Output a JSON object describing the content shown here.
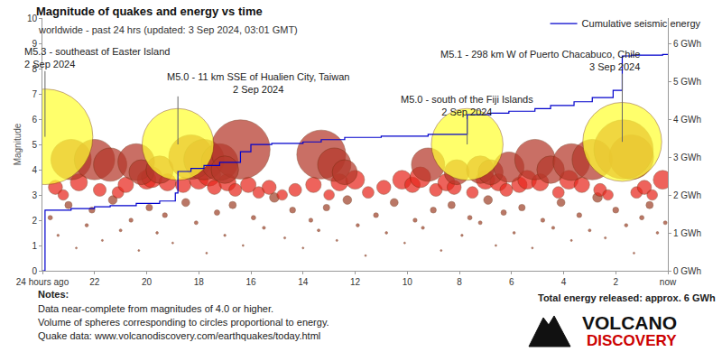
{
  "chart_data": {
    "type": "scatter",
    "title": "Magnitude of quakes and energy vs time",
    "subtitle": "worldwide - past 24 hrs (updated: 3 Sep 2024, 03:01 GMT)",
    "ylabel": "Magnitude",
    "xlim": [
      24,
      0
    ],
    "xticks": [
      {
        "value": 24,
        "label": "24 hours ago"
      },
      22,
      20,
      18,
      16,
      14,
      12,
      10,
      8,
      6,
      4,
      2,
      {
        "value": 0,
        "label": "now"
      }
    ],
    "ylim": [
      0,
      10
    ],
    "yticks": [
      0,
      1,
      2,
      3,
      4,
      5,
      6,
      7,
      8,
      9,
      10
    ],
    "y2lim": [
      0,
      6.67
    ],
    "y2ticks": [
      {
        "value": 0,
        "label": "0 GWh"
      },
      {
        "value": 1,
        "label": "1 GWh"
      },
      {
        "value": 2,
        "label": "2 GWh"
      },
      {
        "value": 3,
        "label": "3 GWh"
      },
      {
        "value": 4,
        "label": "4 GWh"
      },
      {
        "value": 5,
        "label": "5 GWh"
      },
      {
        "value": 6,
        "label": "6 GWh"
      }
    ],
    "grid": false,
    "legend": "top right",
    "series": [
      {
        "color": "#a0442c",
        "marker": "circle",
        "x": [
          23.7,
          23.4,
          23.0,
          22.7,
          22.3,
          22.1,
          21.7,
          21.3,
          21.0,
          20.6,
          20.3,
          19.9,
          19.6,
          19.3,
          19.0,
          18.5,
          18.1,
          17.7,
          17.3,
          17.0,
          16.7,
          16.3,
          15.9,
          15.5,
          15.1,
          14.7,
          14.4,
          14.0,
          13.7,
          13.4,
          13.1,
          12.7,
          12.3,
          11.9,
          11.6,
          11.2,
          10.8,
          10.5,
          10.1,
          9.7,
          9.4,
          9.0,
          8.7,
          8.3,
          7.9,
          7.6,
          7.2,
          6.9,
          6.6,
          6.3,
          5.9,
          5.6,
          5.2,
          4.8,
          4.4,
          4.1,
          3.7,
          3.4,
          3.0,
          2.7,
          2.4,
          2.0,
          1.6,
          1.3,
          1.0,
          0.7,
          0.4,
          0.1
        ],
        "values": [
          2.1,
          1.4,
          2.6,
          0.9,
          1.8,
          2.4,
          1.2,
          2.8,
          1.6,
          2.0,
          0.8,
          2.5,
          1.5,
          2.2,
          1.1,
          2.7,
          1.9,
          0.7,
          2.3,
          1.4,
          2.6,
          1.0,
          2.1,
          1.7,
          2.9,
          1.3,
          2.4,
          0.9,
          2.0,
          1.6,
          2.5,
          1.2,
          2.8,
          1.8,
          0.6,
          2.2,
          1.5,
          2.7,
          1.1,
          2.0,
          1.7,
          2.4,
          0.8,
          2.6,
          1.4,
          2.1,
          1.9,
          2.8,
          1.0,
          2.3,
          1.5,
          2.5,
          0.9,
          2.0,
          1.7,
          2.7,
          1.2,
          2.2,
          1.6,
          2.9,
          1.3,
          2.4,
          1.8,
          0.7,
          2.1,
          2.6,
          1.5,
          1.9
        ]
      },
      {
        "color": "#e8281e",
        "marker": "circle",
        "x": [
          23.5,
          23.2,
          22.6,
          21.8,
          21.1,
          20.8,
          20.0,
          19.8,
          19.2,
          18.6,
          18.0,
          17.6,
          17.4,
          16.9,
          16.6,
          16.1,
          15.7,
          15.3,
          14.8,
          14.3,
          13.6,
          13.0,
          12.6,
          12.0,
          11.5,
          10.9,
          10.2,
          9.8,
          9.5,
          8.9,
          8.5,
          8.2,
          7.5,
          7.0,
          6.5,
          6.2,
          5.7,
          5.4,
          4.9,
          4.2,
          3.8,
          3.3,
          2.6,
          2.3,
          1.2,
          0.9,
          0.6,
          0.2
        ],
        "values": [
          3.3,
          3.0,
          3.5,
          3.2,
          3.1,
          3.4,
          3.6,
          3.7,
          3.5,
          3.4,
          3.6,
          3.8,
          3.3,
          3.5,
          3.2,
          3.4,
          3.1,
          3.3,
          3.0,
          3.2,
          3.4,
          3.0,
          3.5,
          3.6,
          3.1,
          3.3,
          3.6,
          3.4,
          3.7,
          3.2,
          3.5,
          3.3,
          3.1,
          3.6,
          3.5,
          3.2,
          3.4,
          3.6,
          3.5,
          3.1,
          3.6,
          3.4,
          3.2,
          3.0,
          3.1,
          3.3,
          3.0,
          3.6
        ]
      },
      {
        "color": "#b5392b",
        "marker": "circle",
        "x": [
          22.9,
          22.0,
          21.4,
          20.4,
          20.2,
          19.5,
          18.3,
          17.8,
          17.2,
          16.4,
          17.0,
          13.3,
          12.8,
          12.4,
          9.2,
          8.1,
          7.2,
          6.8,
          6.1,
          5.1,
          4.5,
          3.7,
          2.9,
          1.4,
          1.7
        ],
        "values": [
          4.4,
          4.4,
          4.2,
          4.3,
          3.9,
          4.0,
          4.5,
          4.4,
          4.3,
          4.8,
          4.0,
          4.6,
          4.2,
          3.9,
          4.2,
          3.9,
          4.0,
          3.9,
          4.1,
          4.4,
          4.0,
          4.3,
          4.4,
          4.5,
          4.8
        ]
      },
      {
        "color": "#ffff33",
        "marker": "circle",
        "x": [
          23.9,
          18.8,
          7.7,
          1.75
        ],
        "values": [
          5.3,
          5.0,
          5.0,
          5.1
        ]
      },
      {
        "name": "Cumulative seismic energy",
        "type": "line",
        "line_style": "step",
        "color": "#0000cc",
        "axis": "y2",
        "x": [
          24,
          23.9,
          22.9,
          22.0,
          21.4,
          20.4,
          19.5,
          18.9,
          18.8,
          18.3,
          17.8,
          17.2,
          16.4,
          16.0,
          15.2,
          14.0,
          13.3,
          12.4,
          11.0,
          9.2,
          7.7,
          6.8,
          6.1,
          5.1,
          4.5,
          3.6,
          2.9,
          2.1,
          1.75,
          1.4,
          0.2,
          0
        ],
        "values": [
          0,
          1.6,
          1.64,
          1.69,
          1.72,
          1.78,
          1.84,
          2.05,
          2.62,
          2.7,
          2.78,
          2.86,
          3.14,
          3.33,
          3.36,
          3.4,
          3.46,
          3.52,
          3.55,
          3.6,
          4.12,
          4.16,
          4.21,
          4.28,
          4.36,
          4.46,
          4.57,
          4.76,
          5.67,
          5.69,
          5.71,
          5.71
        ]
      }
    ],
    "annotations": [
      {
        "text": "M5.3 - southeast of Easter Island",
        "date": "2 Sep 2024",
        "x": 23.9,
        "y": 5.3
      },
      {
        "text": "M5.0 - 11 km SSE of Hualien City, Taiwan",
        "date": "2 Sep 2024",
        "x": 18.8,
        "y": 5.0
      },
      {
        "text": "M5.0 - south of the Fiji Islands",
        "date": "2 Sep 2024",
        "x": 7.7,
        "y": 5.0
      },
      {
        "text": "M5.1 - 298 km W of Puerto Chacabuco, Chile",
        "date": "3 Sep 2024",
        "x": 1.75,
        "y": 5.1
      }
    ],
    "notes": {
      "title": "Notes:",
      "lines": [
        "Data near-complete from magnitudes of 4.0 or higher.",
        "Volume of spheres corresponding to circles proportional to energy.",
        "Quake data: www.volcanodiscovery.com/earthquakes/today.html"
      ]
    },
    "total_energy": "Total energy released: approx. 6 GWh",
    "logo": [
      "VOLCANO",
      "DISCOVERY"
    ]
  }
}
